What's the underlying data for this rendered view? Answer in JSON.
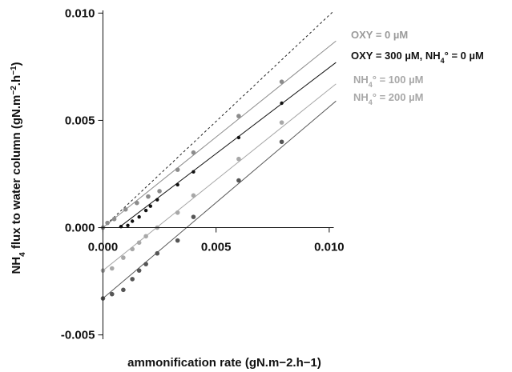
{
  "chart_data": {
    "type": "scatter",
    "title": "",
    "xlabel": "ammonification rate (gN.m−2.h−1)",
    "ylabel_parts": [
      "NH",
      "4",
      " flux to water column (gN.m",
      "−2",
      ".h",
      "−1",
      ")"
    ],
    "xlim": [
      -0.0003,
      0.0105
    ],
    "ylim": [
      -0.0052,
      0.0102
    ],
    "x_ticks": [
      {
        "value": 0.0,
        "label": "0.000"
      },
      {
        "value": 0.005,
        "label": "0.005"
      },
      {
        "value": 0.01,
        "label": "0.010"
      }
    ],
    "y_ticks": [
      {
        "value": 0.01,
        "label": "0.010"
      },
      {
        "value": 0.005,
        "label": "0.005"
      },
      {
        "value": 0.0,
        "label": "0.000"
      },
      {
        "value": -0.005,
        "label": "-0.005"
      }
    ],
    "reference_line": {
      "style": "dashed",
      "x": [
        0,
        0.0102
      ],
      "y": [
        0,
        0.0101
      ]
    },
    "series": [
      {
        "name": "OXY = 0 µM",
        "color": "#8c8c8c",
        "points": [
          [
            0.0,
            0.0
          ],
          [
            0.0002,
            0.00022
          ],
          [
            0.0005,
            0.0004
          ],
          [
            0.001,
            0.00085
          ],
          [
            0.0015,
            0.00115
          ],
          [
            0.002,
            0.00145
          ],
          [
            0.0025,
            0.0017
          ],
          [
            0.0033,
            0.0027
          ],
          [
            0.004,
            0.0035
          ],
          [
            0.006,
            0.0052
          ],
          [
            0.0079,
            0.0068
          ]
        ],
        "fit": [
          [
            0.0,
            0.0
          ],
          [
            0.0103,
            0.0087
          ]
        ]
      },
      {
        "name_parts": [
          "OXY = 300 µM, NH",
          "4",
          "° = 0 µM"
        ],
        "color": "#111111",
        "points": [
          [
            0.0008,
            5e-05
          ],
          [
            0.0011,
            0.0001
          ],
          [
            0.0013,
            0.0003
          ],
          [
            0.0016,
            0.0005
          ],
          [
            0.0019,
            0.0008
          ],
          [
            0.0021,
            0.001
          ],
          [
            0.0024,
            0.0013
          ],
          [
            0.0033,
            0.002
          ],
          [
            0.004,
            0.0026
          ],
          [
            0.006,
            0.0042
          ],
          [
            0.0079,
            0.0058
          ]
        ],
        "fit": [
          [
            0.0007,
            0.0
          ],
          [
            0.0103,
            0.0077
          ]
        ]
      },
      {
        "name_parts": [
          "NH",
          "4",
          "° = 100 µM"
        ],
        "color": "#a8a8a8",
        "points": [
          [
            0.0,
            -0.002
          ],
          [
            0.0004,
            -0.0019
          ],
          [
            0.0009,
            -0.0014
          ],
          [
            0.0013,
            -0.001
          ],
          [
            0.0016,
            -0.0007
          ],
          [
            0.0019,
            -0.0004
          ],
          [
            0.0024,
            0.0
          ],
          [
            0.0033,
            0.0007
          ],
          [
            0.004,
            0.0015
          ],
          [
            0.006,
            0.0032
          ],
          [
            0.0079,
            0.0049
          ]
        ],
        "fit": [
          [
            0.0,
            -0.002
          ],
          [
            0.0103,
            0.0067
          ]
        ]
      },
      {
        "name_parts": [
          "NH",
          "4",
          "° = 200 µM"
        ],
        "color": "#555555",
        "points": [
          [
            0.0,
            -0.0033
          ],
          [
            0.0004,
            -0.0031
          ],
          [
            0.0009,
            -0.0029
          ],
          [
            0.0013,
            -0.0024
          ],
          [
            0.0016,
            -0.002
          ],
          [
            0.0019,
            -0.0017
          ],
          [
            0.0024,
            -0.0012
          ],
          [
            0.0033,
            -0.0006
          ],
          [
            0.004,
            0.0005
          ],
          [
            0.006,
            0.0022
          ],
          [
            0.0079,
            0.004
          ]
        ],
        "fit": [
          [
            0.0,
            -0.0033
          ],
          [
            0.0103,
            0.0059
          ]
        ]
      }
    ],
    "legend": {
      "placement": "right",
      "label_colors": [
        "#9a9a9a",
        "#111111",
        "#a8a8a8",
        "#a8a8a8"
      ]
    }
  }
}
